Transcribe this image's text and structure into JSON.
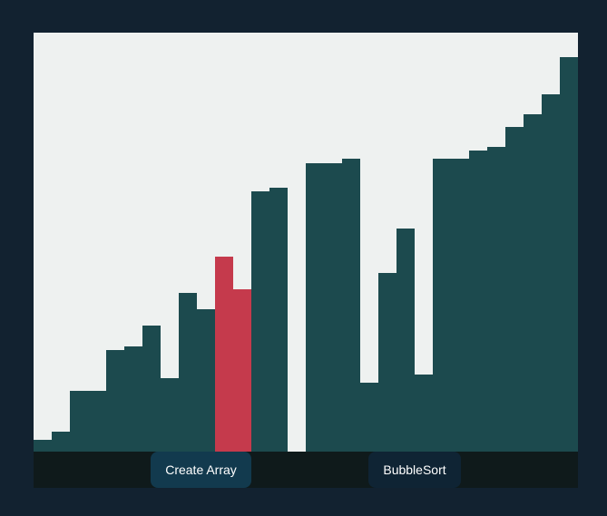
{
  "colors": {
    "background": "#122230",
    "stage": "#eef1f0",
    "bar": "#1c4a4e",
    "bar_active": "#c53a4c",
    "controls": "#0f1a1b",
    "button_create": "#123a4e",
    "button_sort": "#0f2434"
  },
  "array": {
    "max_value": 100,
    "values": [
      3,
      5,
      15,
      15,
      25,
      26,
      31,
      18,
      39,
      35,
      48,
      40,
      64,
      65,
      0,
      71,
      71,
      72,
      17,
      44,
      55,
      19,
      72,
      72,
      74,
      75,
      80,
      83,
      88,
      97
    ],
    "active_indices": [
      10,
      11
    ]
  },
  "controls": {
    "create_label": "Create Array",
    "sort_label": "BubbleSort"
  }
}
